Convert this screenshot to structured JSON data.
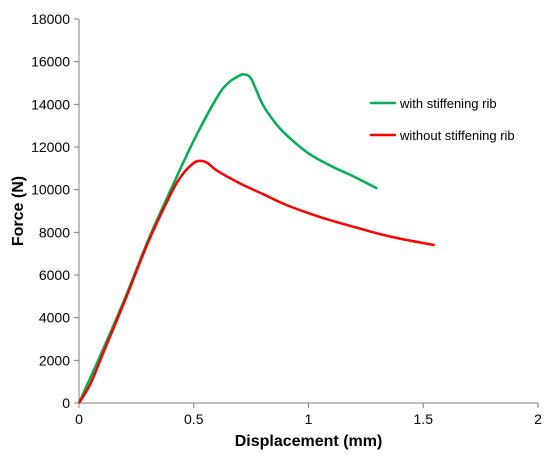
{
  "chart_data": {
    "type": "line",
    "title": "",
    "xlabel": "Displacement (mm)",
    "ylabel": "Force (N)",
    "xlim": [
      0,
      2
    ],
    "ylim": [
      0,
      18000
    ],
    "x_ticks": [
      "0",
      "0.5",
      "1",
      "1.5",
      "2"
    ],
    "y_ticks": [
      "0",
      "2000",
      "4000",
      "6000",
      "8000",
      "10000",
      "12000",
      "14000",
      "16000",
      "18000"
    ],
    "grid": false,
    "legend_position": "right",
    "series": [
      {
        "name": "with stiffening rib",
        "color": "#00b050",
        "points": [
          [
            0,
            0
          ],
          [
            0.1,
            2400
          ],
          [
            0.2,
            4900
          ],
          [
            0.3,
            7600
          ],
          [
            0.4,
            10000
          ],
          [
            0.5,
            12300
          ],
          [
            0.6,
            14300
          ],
          [
            0.65,
            15000
          ],
          [
            0.7,
            15350
          ],
          [
            0.72,
            15400
          ],
          [
            0.75,
            15200
          ],
          [
            0.8,
            14000
          ],
          [
            0.85,
            13200
          ],
          [
            0.9,
            12600
          ],
          [
            1.0,
            11700
          ],
          [
            1.1,
            11100
          ],
          [
            1.2,
            10600
          ],
          [
            1.3,
            10050
          ]
        ]
      },
      {
        "name": "without stiffening rib",
        "color": "#ff0000",
        "points": [
          [
            0,
            0
          ],
          [
            0.05,
            900
          ],
          [
            0.1,
            2200
          ],
          [
            0.2,
            4800
          ],
          [
            0.3,
            7500
          ],
          [
            0.4,
            9800
          ],
          [
            0.45,
            10700
          ],
          [
            0.5,
            11250
          ],
          [
            0.53,
            11350
          ],
          [
            0.56,
            11250
          ],
          [
            0.6,
            10900
          ],
          [
            0.7,
            10300
          ],
          [
            0.8,
            9800
          ],
          [
            0.9,
            9300
          ],
          [
            1.0,
            8900
          ],
          [
            1.1,
            8550
          ],
          [
            1.2,
            8250
          ],
          [
            1.3,
            7950
          ],
          [
            1.4,
            7700
          ],
          [
            1.55,
            7400
          ]
        ]
      }
    ]
  }
}
